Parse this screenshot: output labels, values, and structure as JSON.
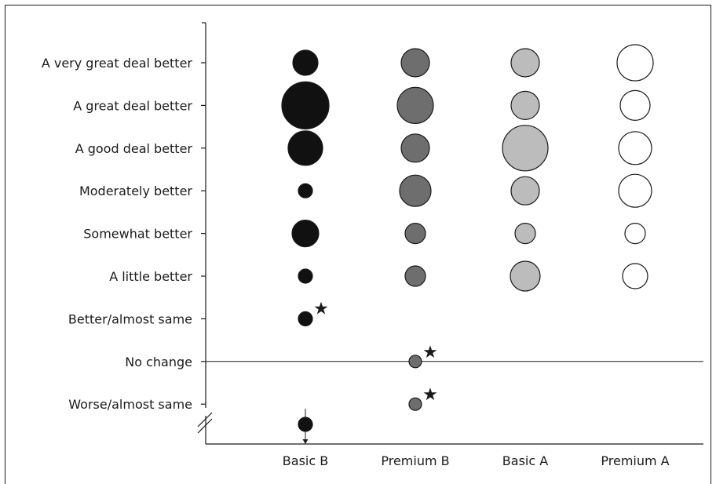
{
  "chart_data": {
    "type": "bubble",
    "categories": [
      "Basic B",
      "Premium B",
      "Basic A",
      "Premium A"
    ],
    "y_levels": [
      "A very great deal better",
      "A great deal better",
      "A good deal better",
      "Moderately better",
      "Somewhat better",
      "A little better",
      "Better/almost same",
      "No change",
      "Worse/almost same"
    ],
    "series": [
      {
        "category": "Basic B",
        "color": "#111111",
        "points": [
          {
            "level": "A very great deal better",
            "size": 16
          },
          {
            "level": "A great deal better",
            "size": 30
          },
          {
            "level": "A good deal better",
            "size": 22
          },
          {
            "level": "Moderately better",
            "size": 9
          },
          {
            "level": "Somewhat better",
            "size": 17
          },
          {
            "level": "A little better",
            "size": 9
          },
          {
            "level": "Better/almost same",
            "size": 9,
            "starred": true
          },
          {
            "level": "below axis break",
            "size": 9,
            "arrow": "down"
          }
        ]
      },
      {
        "category": "Premium B",
        "color": "#6e6e6e",
        "points": [
          {
            "level": "A very great deal better",
            "size": 18
          },
          {
            "level": "A great deal better",
            "size": 23
          },
          {
            "level": "A good deal better",
            "size": 18
          },
          {
            "level": "Moderately better",
            "size": 20
          },
          {
            "level": "Somewhat better",
            "size": 13
          },
          {
            "level": "A little better",
            "size": 13
          },
          {
            "level": "No change",
            "size": 8,
            "starred": true
          },
          {
            "level": "Worse/almost same",
            "size": 8,
            "starred": true
          }
        ]
      },
      {
        "category": "Basic A",
        "color": "#bcbcbc",
        "points": [
          {
            "level": "A very great deal better",
            "size": 18
          },
          {
            "level": "A great deal better",
            "size": 18
          },
          {
            "level": "A good deal better",
            "size": 29
          },
          {
            "level": "Moderately better",
            "size": 18
          },
          {
            "level": "Somewhat better",
            "size": 13
          },
          {
            "level": "A little better",
            "size": 19
          }
        ]
      },
      {
        "category": "Premium A",
        "color": "#ffffff",
        "points": [
          {
            "level": "A very great deal better",
            "size": 23
          },
          {
            "level": "A great deal better",
            "size": 19
          },
          {
            "level": "A good deal better",
            "size": 21
          },
          {
            "level": "Moderately better",
            "size": 21
          },
          {
            "level": "Somewhat better",
            "size": 13
          },
          {
            "level": "A little better",
            "size": 16
          }
        ]
      }
    ],
    "star_marker": "★",
    "reference_line": "No change",
    "axis_break": true
  }
}
